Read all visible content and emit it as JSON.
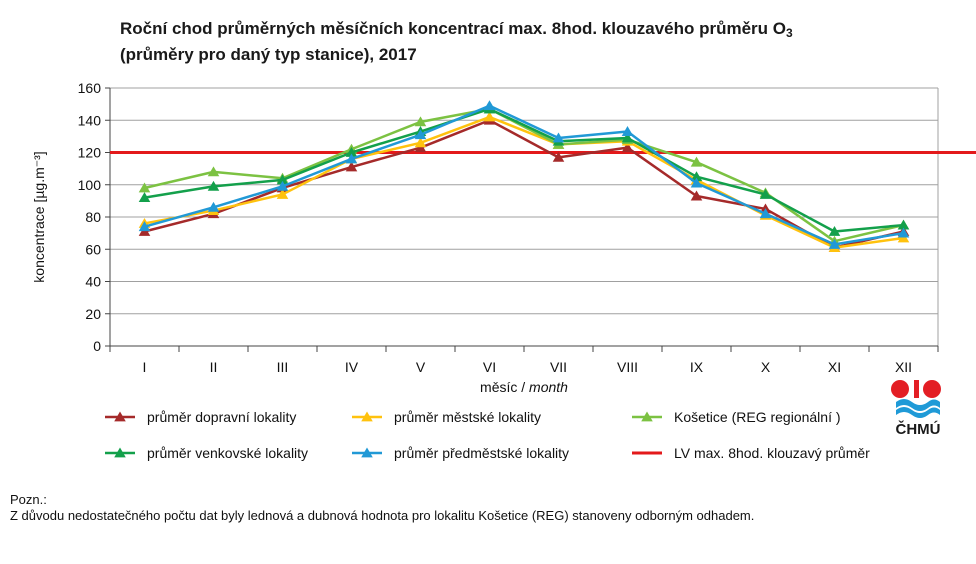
{
  "title": {
    "line1_main": "Roční chod průměrných měsíčních koncentrací max. 8hod. klouzavého průměru O",
    "line1_sub": "3",
    "line2": "(průměry pro daný typ stanice), 2017"
  },
  "logo": {
    "text": "ČHMÚ",
    "colors": {
      "red": "#e31e24",
      "blue": "#1f9ad7"
    }
  },
  "note": {
    "label": "Pozn.:",
    "text": "Z důvodu nedostatečného počtu dat byly lednová a dubnová hodnota pro lokalitu Košetice (REG) stanoveny odborným odhadem."
  },
  "chart_data": {
    "type": "line",
    "categories": [
      "I",
      "II",
      "III",
      "IV",
      "V",
      "VI",
      "VII",
      "VIII",
      "IX",
      "X",
      "XI",
      "XII"
    ],
    "xlabel_main": "měsíc / ",
    "xlabel_italic": "month",
    "ylabel": "koncentrace [µg.m⁻³]",
    "ylim": [
      0,
      160
    ],
    "yticks": [
      0,
      20,
      40,
      60,
      80,
      100,
      120,
      140,
      160
    ],
    "grid": true,
    "legend_position": "bottom",
    "series": [
      {
        "name": "průměr dopravní lokality",
        "color": "#a52a2a",
        "values": [
          71,
          82,
          98,
          111,
          123,
          140,
          117,
          123,
          93,
          85,
          61,
          71
        ]
      },
      {
        "name": "průměr městské lokality",
        "color": "#ffc20e",
        "values": [
          76,
          84,
          94,
          116,
          126,
          142,
          125,
          127,
          103,
          81,
          61,
          67
        ]
      },
      {
        "name": "Košetice (REG regionální )",
        "color": "#7cc242",
        "values": [
          98,
          108,
          104,
          122,
          139,
          147,
          125,
          128,
          114,
          95,
          65,
          75
        ]
      },
      {
        "name": "průměr venkovské lokality",
        "color": "#13a04b",
        "values": [
          92,
          99,
          103,
          120,
          133,
          147,
          127,
          129,
          105,
          94,
          71,
          75
        ]
      },
      {
        "name": "průměr předměstské lokality",
        "color": "#2199d6",
        "values": [
          74,
          86,
          99,
          116,
          131,
          149,
          129,
          133,
          101,
          82,
          63,
          70
        ]
      }
    ],
    "limit_line": {
      "name": "LV max. 8hod. klouzavý průměr",
      "value": 120,
      "color": "#e3191b"
    }
  }
}
